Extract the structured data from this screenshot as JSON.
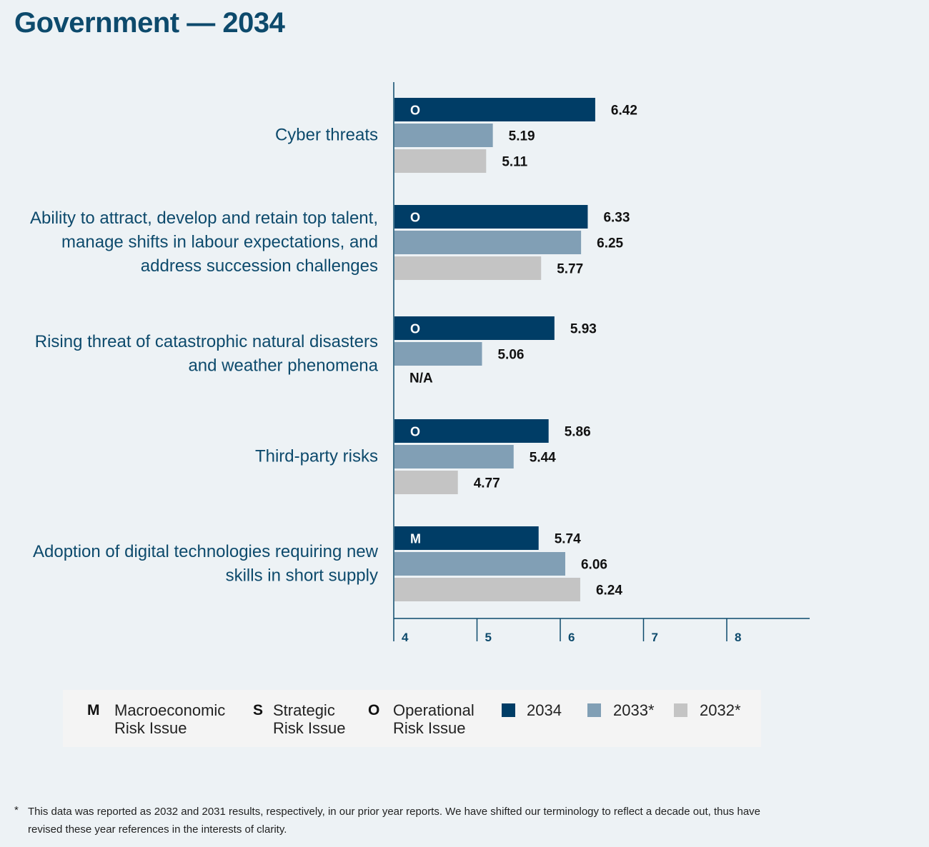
{
  "title": "Government — 2034",
  "chart_data": {
    "type": "bar",
    "orientation": "horizontal",
    "categories": [
      [
        "Cyber threats"
      ],
      [
        "Ability to attract, develop and retain top talent,",
        "manage shifts in labour expectations, and",
        "address succession challenges"
      ],
      [
        "Rising threat of catastrophic natural disasters",
        "and weather phenomena"
      ],
      [
        "Third-party risks"
      ],
      [
        "Adoption of digital technologies requiring new",
        "skills in short supply"
      ]
    ],
    "risk_types": [
      "O",
      "O",
      "O",
      "O",
      "M"
    ],
    "series": [
      {
        "name": "2034",
        "color": "#003d66",
        "values": [
          6.42,
          6.33,
          5.93,
          5.86,
          5.74
        ],
        "labels": [
          "6.42",
          "6.33",
          "5.93",
          "5.86",
          "5.74"
        ]
      },
      {
        "name": "2033*",
        "color": "#819fb5",
        "values": [
          5.19,
          6.25,
          5.06,
          5.44,
          6.06
        ],
        "labels": [
          "5.19",
          "6.25",
          "5.06",
          "5.44",
          "6.06"
        ]
      },
      {
        "name": "2032*",
        "color": "#c4c4c4",
        "values": [
          5.11,
          5.77,
          null,
          4.77,
          6.24
        ],
        "labels": [
          "5.11",
          "5.77",
          "N/A",
          "4.77",
          "6.24"
        ]
      }
    ],
    "xlim": [
      4,
      9
    ],
    "xticks": [
      "4",
      "5",
      "6",
      "7",
      "8"
    ],
    "xlabel": "",
    "ylabel": ""
  },
  "legend": {
    "types": [
      {
        "code": "M",
        "line1": "Macroeconomic",
        "line2": "Risk Issue"
      },
      {
        "code": "S",
        "line1": "Strategic",
        "line2": "Risk Issue"
      },
      {
        "code": "O",
        "line1": "Operational",
        "line2": "Risk Issue"
      }
    ],
    "years": [
      {
        "label": "2034",
        "color": "#003d66"
      },
      {
        "label": "2033*",
        "color": "#819fb5"
      },
      {
        "label": "2032*",
        "color": "#c4c4c4"
      }
    ]
  },
  "footnote": {
    "marker": "*",
    "text": "This data was reported as 2032 and 2031 results, respectively, in our prior year reports. We have shifted our terminology to reflect a decade out, thus have revised these year references in the interests of clarity."
  }
}
